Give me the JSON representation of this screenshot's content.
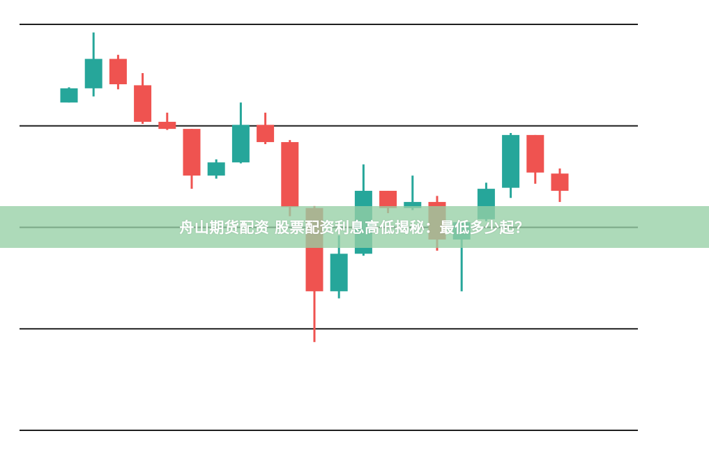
{
  "banner": {
    "title": "舟山期货配资 股票配资利息高低揭秘：最低多少起？"
  },
  "colors": {
    "up": "#26a69a",
    "down": "#ef5350",
    "grid": "#1e1e1e",
    "banner": "#a8d8b5"
  },
  "chart_data": {
    "type": "candlestick",
    "title": "",
    "xlabel": "",
    "ylabel": "",
    "grid": true,
    "ylim": [
      0,
      4
    ],
    "candles": [
      {
        "open": 3.23,
        "high": 3.38,
        "low": 3.23,
        "close": 3.37
      },
      {
        "open": 3.37,
        "high": 3.92,
        "low": 3.29,
        "close": 3.66
      },
      {
        "open": 3.66,
        "high": 3.7,
        "low": 3.36,
        "close": 3.41
      },
      {
        "open": 3.4,
        "high": 3.52,
        "low": 3.02,
        "close": 3.04
      },
      {
        "open": 3.04,
        "high": 3.13,
        "low": 2.96,
        "close": 2.97
      },
      {
        "open": 2.97,
        "high": 2.97,
        "low": 2.38,
        "close": 2.51
      },
      {
        "open": 2.51,
        "high": 2.67,
        "low": 2.48,
        "close": 2.64
      },
      {
        "open": 2.64,
        "high": 3.23,
        "low": 2.63,
        "close": 3.01
      },
      {
        "open": 3.01,
        "high": 3.13,
        "low": 2.82,
        "close": 2.84
      },
      {
        "open": 2.84,
        "high": 2.86,
        "low": 2.11,
        "close": 2.2
      },
      {
        "open": 2.19,
        "high": 2.21,
        "low": 0.87,
        "close": 1.37
      },
      {
        "open": 1.37,
        "high": 1.92,
        "low": 1.3,
        "close": 1.74
      },
      {
        "open": 1.74,
        "high": 2.62,
        "low": 1.72,
        "close": 2.36
      },
      {
        "open": 2.36,
        "high": 2.36,
        "low": 2.14,
        "close": 2.19
      },
      {
        "open": 2.19,
        "high": 2.51,
        "low": 2.17,
        "close": 2.25
      },
      {
        "open": 2.25,
        "high": 2.31,
        "low": 1.77,
        "close": 1.88
      },
      {
        "open": 1.88,
        "high": 2.06,
        "low": 1.37,
        "close": 2.05
      },
      {
        "open": 2.08,
        "high": 2.44,
        "low": 2.06,
        "close": 2.38
      },
      {
        "open": 2.39,
        "high": 2.93,
        "low": 2.29,
        "close": 2.91
      },
      {
        "open": 2.91,
        "high": 2.91,
        "low": 2.43,
        "close": 2.54
      },
      {
        "open": 2.53,
        "high": 2.58,
        "low": 2.25,
        "close": 2.36
      }
    ],
    "gridlines": [
      0,
      1,
      2,
      3,
      4
    ]
  }
}
